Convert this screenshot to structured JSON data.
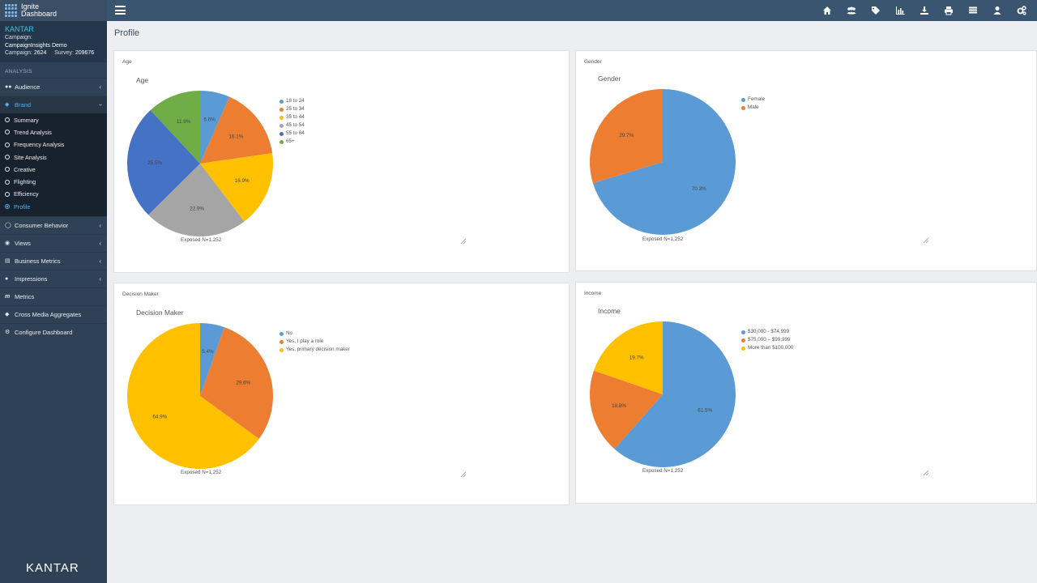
{
  "brand": {
    "line1": "Ignite",
    "line2": "Dashboard"
  },
  "campaign_info": {
    "client": "KANTAR",
    "campaign_label": "Campaign:",
    "campaign_name": "CampaignInsights Demo",
    "campaign_id_label": "Campaign:",
    "campaign_id": "2624",
    "survey_label": "Survey:",
    "survey_id": "209676"
  },
  "sidebar": {
    "section_label": "ANALYSIS",
    "nav_top": [
      {
        "label": "Audience",
        "icon": "users-icon"
      },
      {
        "label": "Brand",
        "icon": "tag-icon",
        "active": true
      }
    ],
    "sub_items": [
      {
        "label": "Summary"
      },
      {
        "label": "Trend Analysis"
      },
      {
        "label": "Frequency Analysis"
      },
      {
        "label": "Site Analysis"
      },
      {
        "label": "Creative"
      },
      {
        "label": "Flighting"
      },
      {
        "label": "Efficiency"
      },
      {
        "label": "Profile",
        "active": true
      }
    ],
    "nav_bottom": [
      {
        "label": "Consumer Behavior",
        "icon": "comment-icon",
        "chevron": true
      },
      {
        "label": "Views",
        "icon": "eye-icon",
        "chevron": true
      },
      {
        "label": "Business Metrics",
        "icon": "document-icon",
        "chevron": true
      },
      {
        "label": "Impressions",
        "icon": "globe-icon",
        "chevron": true
      },
      {
        "label": "Metrics",
        "icon": "m-icon",
        "chevron": false
      },
      {
        "label": "Cross Media Aggregates",
        "icon": "tag-icon",
        "chevron": false
      },
      {
        "label": "Configure Dashboard",
        "icon": "cogs-icon",
        "chevron": false
      }
    ],
    "footer_logo": "KANTAR"
  },
  "topbar": {
    "icons": [
      "home-icon",
      "users-icon",
      "tags-icon",
      "bar-chart-icon",
      "download-icon",
      "print-icon",
      "table-icon",
      "user-icon",
      "cogs-icon"
    ]
  },
  "page": {
    "title": "Profile"
  },
  "colors": {
    "blue": "#5b9bd5",
    "orange": "#ed7d31",
    "gray": "#a5a5a5",
    "yellow": "#ffc000",
    "darkblue": "#4472c4",
    "green": "#70ad47"
  },
  "chart_data": [
    {
      "type": "pie",
      "panel_header": "Age",
      "title": "Age",
      "note": "Exposed N=1,252",
      "legend_placement": "right",
      "categories": [
        "18 to 24",
        "25 to 34",
        "35 to 44",
        "45 to 54",
        "55 to 64",
        "65+"
      ],
      "values": [
        6.6,
        16.1,
        16.9,
        22.9,
        25.5,
        11.9
      ],
      "labels": [
        "6.6%",
        "16.1%",
        "16.9%",
        "22.9%",
        "25.5%",
        "11.9%"
      ],
      "colors": [
        "#5b9bd5",
        "#ed7d31",
        "#ffc000",
        "#a5a5a5",
        "#4472c4",
        "#70ad47"
      ]
    },
    {
      "type": "pie",
      "panel_header": "Gender",
      "title": "Gender",
      "note": "Exposed N=1,252",
      "legend_placement": "right",
      "categories": [
        "Female",
        "Male"
      ],
      "values": [
        70.3,
        29.7
      ],
      "labels": [
        "70.3%",
        "29.7%"
      ],
      "colors": [
        "#5b9bd5",
        "#ed7d31"
      ]
    },
    {
      "type": "pie",
      "panel_header": "Decision Maker",
      "title": "Decision Maker",
      "note": "Exposed N=1,252",
      "legend_placement": "right",
      "categories": [
        "No",
        "Yes, I play a role",
        "Yes, primary decision maker"
      ],
      "values": [
        5.4,
        29.6,
        64.9
      ],
      "labels": [
        "5.4%",
        "29.6%",
        "64.9%"
      ],
      "colors": [
        "#5b9bd5",
        "#ed7d31",
        "#ffc000"
      ]
    },
    {
      "type": "pie",
      "panel_header": "Income",
      "title": "Income",
      "note": "Exposed N=1,252",
      "legend_placement": "right",
      "categories": [
        "$30,000 - $74,999",
        "$75,000 – $99,999",
        "More than $100,000"
      ],
      "values": [
        61.5,
        18.8,
        19.7
      ],
      "labels": [
        "61.5%",
        "18.8%",
        "19.7%"
      ],
      "colors": [
        "#5b9bd5",
        "#ed7d31",
        "#ffc000"
      ]
    }
  ]
}
